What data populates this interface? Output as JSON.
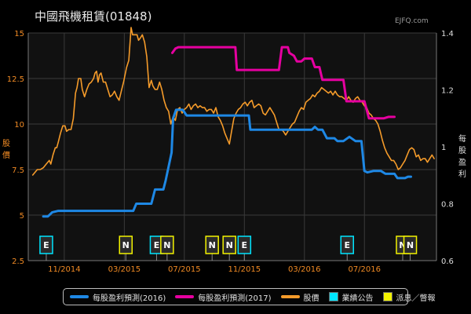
{
  "title": "中國飛機租賃(01848)",
  "brand": "EJFQ.com",
  "left_axis_label": [
    "股",
    "價"
  ],
  "right_axis_label": [
    "每",
    "股",
    "盈",
    "利"
  ],
  "colors": {
    "eps2016": "#1e88e5",
    "eps2017": "#e600a0",
    "price": "#f59b2a",
    "results": "#00e5ff",
    "dividend": "#f2f200",
    "left_axis_text": "#f08a24",
    "right_axis_text": "#dddddd"
  },
  "legend": [
    {
      "label": "每股盈利預測(2016)",
      "type": "line",
      "color": "#1e88e5"
    },
    {
      "label": "每股盈利預測(2017)",
      "type": "line",
      "color": "#e600a0"
    },
    {
      "label": "股價",
      "type": "line",
      "color": "#f59b2a"
    },
    {
      "label": "業績公告",
      "type": "box",
      "color": "#00e5ff"
    },
    {
      "label": "派息／瞥報",
      "type": "box",
      "color": "#f2f200"
    }
  ],
  "chart_data": {
    "type": "line",
    "x_ticks": [
      "11/2014",
      "03/2015",
      "07/2015",
      "11/2015",
      "03/2016",
      "07/2016"
    ],
    "x_tick_months": [
      2,
      6,
      10,
      14,
      18,
      22
    ],
    "left_ylim": [
      2.5,
      15
    ],
    "left_ticks": [
      "2.5",
      "5",
      "7.5",
      "10",
      "12.5",
      "15"
    ],
    "right_ylim": [
      0.6,
      1.4
    ],
    "right_ticks": [
      "0.6",
      "0.8",
      "1",
      "1.2",
      "1.4"
    ],
    "grid": true,
    "legend_position": "bottom",
    "series": [
      {
        "name": "股價",
        "axis": "left",
        "points": [
          [
            -0.1,
            7.2
          ],
          [
            0.2,
            7.5
          ],
          [
            0.4,
            7.5
          ],
          [
            0.6,
            7.6
          ],
          [
            0.8,
            7.8
          ],
          [
            1.0,
            8.0
          ],
          [
            1.1,
            7.8
          ],
          [
            1.25,
            8.3
          ],
          [
            1.4,
            8.7
          ],
          [
            1.5,
            8.7
          ],
          [
            1.6,
            9.0
          ],
          [
            1.75,
            9.5
          ],
          [
            1.9,
            9.9
          ],
          [
            2.05,
            9.9
          ],
          [
            2.15,
            9.6
          ],
          [
            2.3,
            9.7
          ],
          [
            2.45,
            9.7
          ],
          [
            2.6,
            10.3
          ],
          [
            2.75,
            11.7
          ],
          [
            2.85,
            12.0
          ],
          [
            2.95,
            12.5
          ],
          [
            3.1,
            12.5
          ],
          [
            3.2,
            11.9
          ],
          [
            3.35,
            11.5
          ],
          [
            3.5,
            11.9
          ],
          [
            3.65,
            12.2
          ],
          [
            3.8,
            12.3
          ],
          [
            3.95,
            12.5
          ],
          [
            4.05,
            12.8
          ],
          [
            4.15,
            12.9
          ],
          [
            4.25,
            12.3
          ],
          [
            4.35,
            12.7
          ],
          [
            4.45,
            12.8
          ],
          [
            4.6,
            12.3
          ],
          [
            4.75,
            12.3
          ],
          [
            4.9,
            11.9
          ],
          [
            5.05,
            11.5
          ],
          [
            5.2,
            11.6
          ],
          [
            5.35,
            11.8
          ],
          [
            5.5,
            11.5
          ],
          [
            5.65,
            11.3
          ],
          [
            5.8,
            11.8
          ],
          [
            5.95,
            12.3
          ],
          [
            6.05,
            12.7
          ],
          [
            6.15,
            13.1
          ],
          [
            6.3,
            13.5
          ],
          [
            6.45,
            15.3
          ],
          [
            6.55,
            14.9
          ],
          [
            6.7,
            14.9
          ],
          [
            6.85,
            14.9
          ],
          [
            6.95,
            14.6
          ],
          [
            7.05,
            14.7
          ],
          [
            7.2,
            14.9
          ],
          [
            7.35,
            14.5
          ],
          [
            7.5,
            13.7
          ],
          [
            7.65,
            12.0
          ],
          [
            7.8,
            12.4
          ],
          [
            7.9,
            12.1
          ],
          [
            8.05,
            11.9
          ],
          [
            8.2,
            11.9
          ],
          [
            8.35,
            12.3
          ],
          [
            8.5,
            11.9
          ],
          [
            8.65,
            11.3
          ],
          [
            8.8,
            10.9
          ],
          [
            8.95,
            10.7
          ],
          [
            9.1,
            10.0
          ],
          [
            9.25,
            10.4
          ],
          [
            9.4,
            10.2
          ],
          [
            9.55,
            10.8
          ],
          [
            9.7,
            10.9
          ],
          [
            9.85,
            10.6
          ],
          [
            10.0,
            10.8
          ],
          [
            10.15,
            10.9
          ],
          [
            10.3,
            11.1
          ],
          [
            10.45,
            10.8
          ],
          [
            10.6,
            11.0
          ],
          [
            10.75,
            11.1
          ],
          [
            10.9,
            10.9
          ],
          [
            11.05,
            11.0
          ],
          [
            11.2,
            10.9
          ],
          [
            11.35,
            10.9
          ],
          [
            11.5,
            10.7
          ],
          [
            11.65,
            10.8
          ],
          [
            11.8,
            10.8
          ],
          [
            11.95,
            10.6
          ],
          [
            12.1,
            10.9
          ],
          [
            12.25,
            10.4
          ],
          [
            12.4,
            10.2
          ],
          [
            12.55,
            9.9
          ],
          [
            12.7,
            9.5
          ],
          [
            12.85,
            9.2
          ],
          [
            13.0,
            8.9
          ],
          [
            13.15,
            9.6
          ],
          [
            13.3,
            10.3
          ],
          [
            13.45,
            10.6
          ],
          [
            13.6,
            10.8
          ],
          [
            13.75,
            10.9
          ],
          [
            13.9,
            11.1
          ],
          [
            14.05,
            11.2
          ],
          [
            14.2,
            11.0
          ],
          [
            14.35,
            11.2
          ],
          [
            14.5,
            11.3
          ],
          [
            14.65,
            10.9
          ],
          [
            14.8,
            11.0
          ],
          [
            14.95,
            11.1
          ],
          [
            15.1,
            11.0
          ],
          [
            15.25,
            10.6
          ],
          [
            15.4,
            10.5
          ],
          [
            15.55,
            10.7
          ],
          [
            15.7,
            10.9
          ],
          [
            15.85,
            10.7
          ],
          [
            16.0,
            10.5
          ],
          [
            16.15,
            10.1
          ],
          [
            16.3,
            9.7
          ],
          [
            16.45,
            9.7
          ],
          [
            16.6,
            9.6
          ],
          [
            16.75,
            9.4
          ],
          [
            16.9,
            9.6
          ],
          [
            17.05,
            9.8
          ],
          [
            17.2,
            10.0
          ],
          [
            17.35,
            10.1
          ],
          [
            17.5,
            10.4
          ],
          [
            17.65,
            10.7
          ],
          [
            17.8,
            10.9
          ],
          [
            17.95,
            10.8
          ],
          [
            18.1,
            11.2
          ],
          [
            18.25,
            11.3
          ],
          [
            18.4,
            11.4
          ],
          [
            18.55,
            11.6
          ],
          [
            18.7,
            11.5
          ],
          [
            18.85,
            11.7
          ],
          [
            19.0,
            11.8
          ],
          [
            19.15,
            12.0
          ],
          [
            19.3,
            11.9
          ],
          [
            19.45,
            11.8
          ],
          [
            19.6,
            11.7
          ],
          [
            19.75,
            11.8
          ],
          [
            19.9,
            11.6
          ],
          [
            20.05,
            11.8
          ],
          [
            20.2,
            11.6
          ],
          [
            20.35,
            11.5
          ],
          [
            20.5,
            11.5
          ],
          [
            20.65,
            11.4
          ],
          [
            20.8,
            11.3
          ],
          [
            20.95,
            11.5
          ],
          [
            21.1,
            11.3
          ],
          [
            21.25,
            11.2
          ],
          [
            21.4,
            11.4
          ],
          [
            21.55,
            11.5
          ],
          [
            21.7,
            11.3
          ],
          [
            21.85,
            11.2
          ],
          [
            22.0,
            11.0
          ],
          [
            22.15,
            10.9
          ],
          [
            22.3,
            10.6
          ],
          [
            22.45,
            10.5
          ],
          [
            22.6,
            10.3
          ],
          [
            22.75,
            10.2
          ],
          [
            22.9,
            10.0
          ],
          [
            23.05,
            9.6
          ],
          [
            23.2,
            9.1
          ],
          [
            23.35,
            8.7
          ],
          [
            23.5,
            8.4
          ],
          [
            23.65,
            8.2
          ],
          [
            23.8,
            8.0
          ],
          [
            23.95,
            8.0
          ],
          [
            24.1,
            7.8
          ],
          [
            24.25,
            7.5
          ],
          [
            24.4,
            7.6
          ],
          [
            24.55,
            7.8
          ],
          [
            24.7,
            8.0
          ],
          [
            24.85,
            8.3
          ],
          [
            25.0,
            8.6
          ],
          [
            25.15,
            8.7
          ],
          [
            25.3,
            8.6
          ],
          [
            25.45,
            8.2
          ],
          [
            25.6,
            8.3
          ],
          [
            25.75,
            8.0
          ],
          [
            25.9,
            8.1
          ],
          [
            26.05,
            8.1
          ],
          [
            26.2,
            7.9
          ],
          [
            26.35,
            8.1
          ],
          [
            26.5,
            8.3
          ],
          [
            26.65,
            8.1
          ]
        ]
      },
      {
        "name": "每股盈利預測(2016)",
        "axis": "right",
        "points": [
          [
            0.6,
            0.755
          ],
          [
            0.9,
            0.755
          ],
          [
            1.2,
            0.77
          ],
          [
            1.6,
            0.775
          ],
          [
            2.5,
            0.775
          ],
          [
            6.3,
            0.775
          ],
          [
            6.6,
            0.775
          ],
          [
            6.8,
            0.8
          ],
          [
            7.8,
            0.8
          ],
          [
            8.05,
            0.85
          ],
          [
            8.6,
            0.85
          ],
          [
            8.75,
            0.88
          ],
          [
            9.15,
            0.98
          ],
          [
            9.25,
            1.1
          ],
          [
            9.45,
            1.13
          ],
          [
            9.9,
            1.13
          ],
          [
            10.15,
            1.11
          ],
          [
            13.9,
            1.11
          ],
          [
            14.3,
            1.11
          ],
          [
            14.4,
            1.06
          ],
          [
            18.5,
            1.06
          ],
          [
            18.7,
            1.07
          ],
          [
            18.9,
            1.06
          ],
          [
            19.2,
            1.06
          ],
          [
            19.5,
            1.03
          ],
          [
            20.0,
            1.03
          ],
          [
            20.2,
            1.02
          ],
          [
            20.6,
            1.02
          ],
          [
            21.0,
            1.035
          ],
          [
            21.4,
            1.02
          ],
          [
            21.8,
            1.02
          ],
          [
            22.0,
            0.915
          ],
          [
            22.2,
            0.91
          ],
          [
            22.6,
            0.915
          ],
          [
            23.1,
            0.915
          ],
          [
            23.4,
            0.905
          ],
          [
            23.7,
            0.905
          ],
          [
            24.0,
            0.905
          ],
          [
            24.2,
            0.89
          ],
          [
            24.4,
            0.89
          ],
          [
            24.7,
            0.89
          ],
          [
            24.9,
            0.895
          ],
          [
            25.1,
            0.895
          ]
        ]
      },
      {
        "name": "每股盈利預測(2017)",
        "axis": "right",
        "points": [
          [
            9.2,
            1.33
          ],
          [
            9.4,
            1.345
          ],
          [
            9.6,
            1.35
          ],
          [
            13.2,
            1.35
          ],
          [
            13.4,
            1.35
          ],
          [
            13.5,
            1.27
          ],
          [
            16.3,
            1.27
          ],
          [
            16.5,
            1.35
          ],
          [
            16.9,
            1.35
          ],
          [
            17.0,
            1.33
          ],
          [
            17.3,
            1.32
          ],
          [
            17.5,
            1.3
          ],
          [
            17.8,
            1.3
          ],
          [
            18.0,
            1.31
          ],
          [
            18.5,
            1.31
          ],
          [
            18.7,
            1.28
          ],
          [
            19.0,
            1.28
          ],
          [
            19.2,
            1.235
          ],
          [
            20.2,
            1.235
          ],
          [
            20.6,
            1.235
          ],
          [
            20.8,
            1.16
          ],
          [
            21.6,
            1.16
          ],
          [
            22.0,
            1.16
          ],
          [
            22.3,
            1.1
          ],
          [
            23.0,
            1.1
          ],
          [
            23.3,
            1.1
          ],
          [
            23.6,
            1.105
          ],
          [
            24.0,
            1.105
          ]
        ]
      }
    ],
    "markers": [
      {
        "label": "E",
        "type": "results",
        "month": 0.8
      },
      {
        "label": "N",
        "type": "dividend",
        "month": 6.1
      },
      {
        "label": "E",
        "type": "results",
        "month": 8.15
      },
      {
        "label": "N",
        "type": "dividend",
        "month": 8.85
      },
      {
        "label": "N",
        "type": "dividend",
        "month": 11.85
      },
      {
        "label": "N",
        "type": "dividend",
        "month": 13.0
      },
      {
        "label": "E",
        "type": "results",
        "month": 14.0
      },
      {
        "label": "E",
        "type": "results",
        "month": 20.85
      },
      {
        "label": "N",
        "type": "dividend",
        "month": 24.55
      },
      {
        "label": "N",
        "type": "dividend",
        "month": 25.05
      }
    ]
  }
}
